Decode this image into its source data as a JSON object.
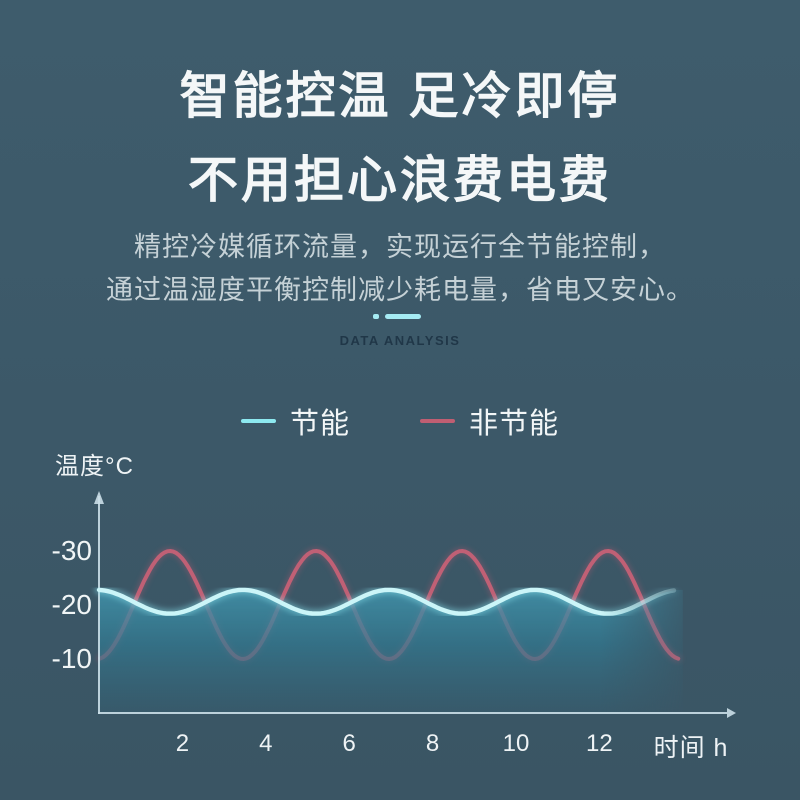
{
  "page": {
    "background_top": "#3e5c6c",
    "background_bottom": "#3a5564"
  },
  "header": {
    "title_line1": "智能控温 足冷即停",
    "title_line2": "不用担心浪费电费",
    "subtitle_line1": "精控冷媒循环流量，实现运行全节能控制，",
    "subtitle_line2": "通过温湿度平衡控制减少耗电量，省电又安心。",
    "section_label": "DATA ANALYSIS",
    "accent_color": "#a5ebf3"
  },
  "legend": {
    "items": [
      {
        "label": "节能",
        "color": "#8de9f0"
      },
      {
        "label": "非节能",
        "color": "#c05e72"
      }
    ]
  },
  "chart_data": {
    "type": "line",
    "title": "",
    "xlabel": "时间 h",
    "ylabel": "温度°C",
    "x_ticks": [
      2,
      4,
      6,
      8,
      10,
      12
    ],
    "y_ticks": [
      -30,
      -20,
      -10
    ],
    "x_range_h": [
      0,
      14
    ],
    "y_range": [
      0,
      -30
    ],
    "y_axis_negative_up": true,
    "grid": true,
    "sample_hours": [
      0,
      0.5,
      1,
      1.5,
      2,
      2.5,
      3,
      3.5,
      4,
      4.5,
      5,
      5.5,
      6,
      6.5,
      7,
      7.5,
      8,
      8.5,
      9,
      9.5,
      10,
      10.5,
      11,
      11.5,
      12,
      12.5,
      13,
      13.5,
      14
    ],
    "series": [
      {
        "name": "节能",
        "color": "#cbf5f8",
        "glow_color": "#86deea",
        "area_fill": true,
        "wave": {
          "mean": -20.6,
          "amplitude": 2.2,
          "period_h": 3.5,
          "coldest_at_h": 3.45
        },
        "temps": [
          -22.8,
          -21.8,
          -19.9,
          -18.5,
          -18.7,
          -20.3,
          -22.1,
          -22.8,
          -21.8,
          -19.9,
          -18.5,
          -18.7,
          -20.3,
          -22.1,
          -22.8,
          -21.8,
          -19.9,
          -18.5,
          -18.7,
          -20.3,
          -22.1,
          -22.8,
          -21.8,
          -19.9,
          -18.5,
          -18.7,
          -20.3,
          -22.1,
          -22.8
        ]
      },
      {
        "name": "非节能",
        "color": "#c56176",
        "glow_color": "#b65a70",
        "area_fill": false,
        "wave": {
          "mean": -20.0,
          "amplitude": 10.0,
          "period_h": 3.5,
          "coldest_at_h": 1.7
        },
        "temps": [
          -10.0,
          -14.5,
          -23.1,
          -29.4,
          -28.6,
          -21.3,
          -13.1,
          -10.0,
          -14.5,
          -23.1,
          -29.4,
          -28.6,
          -21.3,
          -13.1,
          -10.0,
          -14.5,
          -23.1,
          -29.4,
          -28.6,
          -21.3,
          -13.1,
          -10.0,
          -14.5,
          -23.1,
          -29.4,
          -28.6,
          -21.3,
          -13.1,
          -10.0
        ]
      }
    ],
    "area_gradient": [
      "#46a0b9",
      "#327a92",
      "#355e70"
    ]
  }
}
